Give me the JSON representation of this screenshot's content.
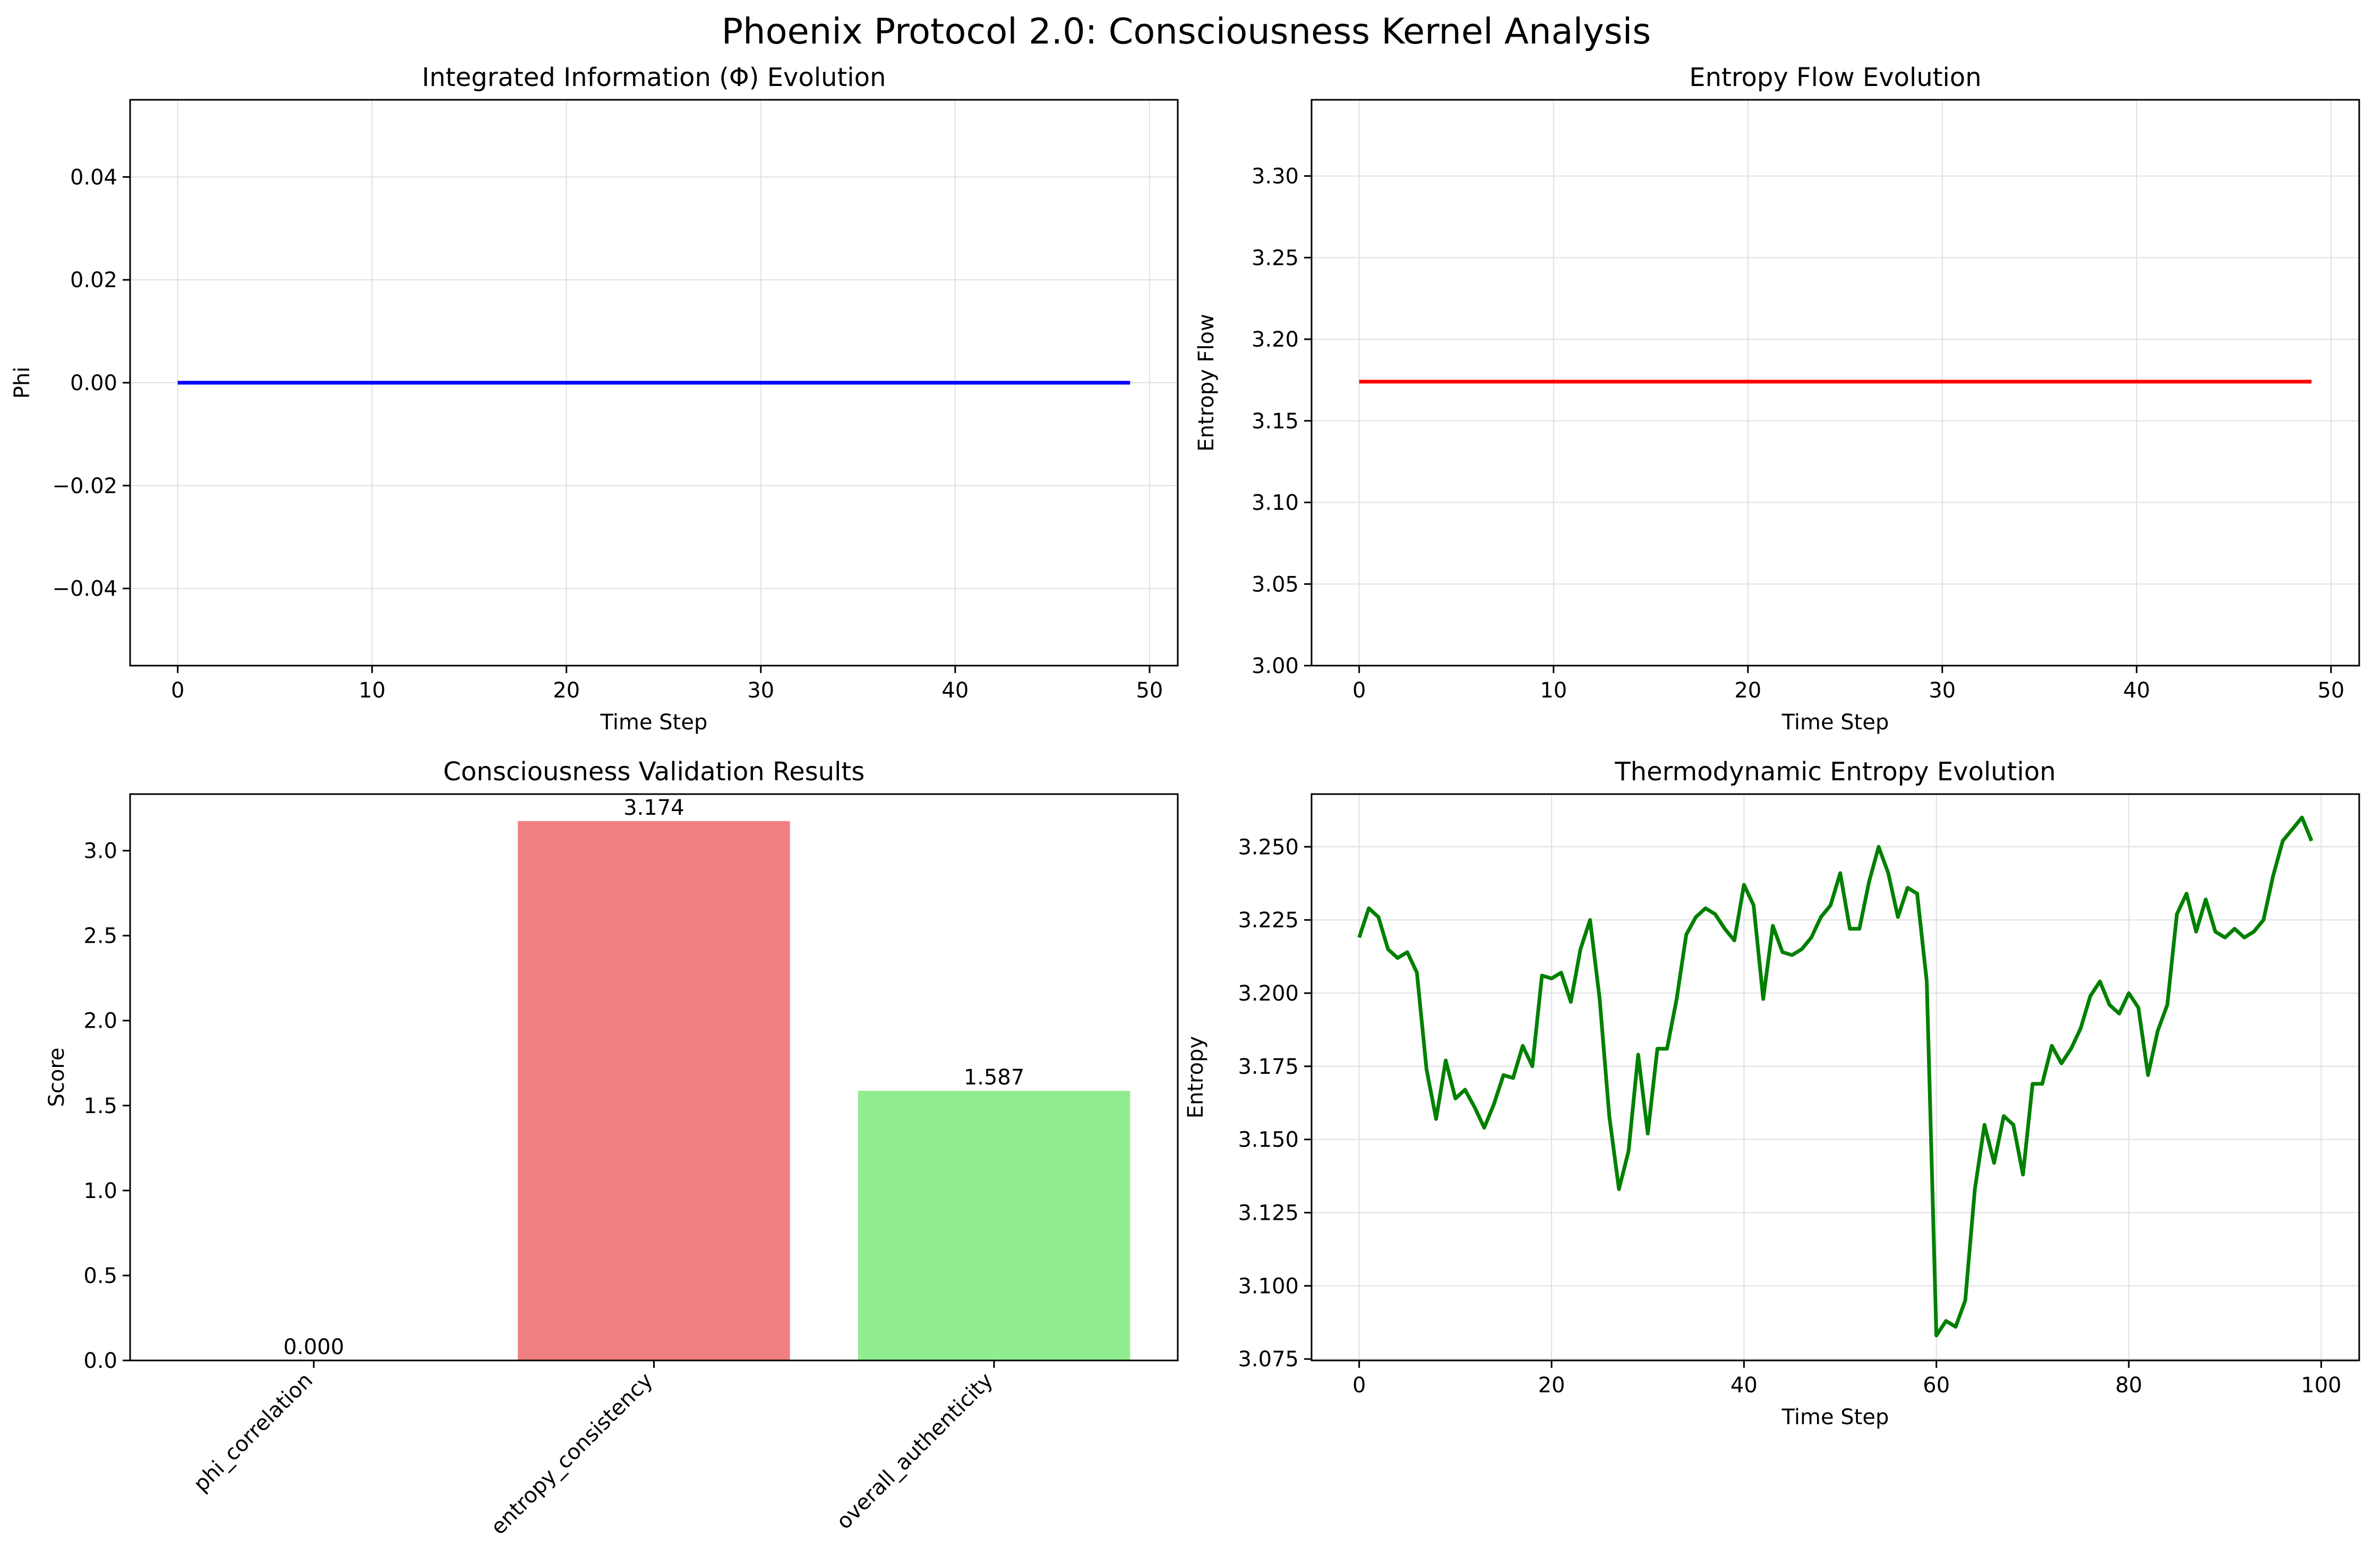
{
  "suptitle": "Phoenix Protocol 2.0: Consciousness Kernel Analysis",
  "colors": {
    "phi_line": "#0000ff",
    "entropy_flow_line": "#ff0000",
    "thermo_line": "#008000",
    "bar_colors": [
      "#87ceeb",
      "#f08080",
      "#90ee90"
    ],
    "grid": "#e0e0e0"
  },
  "chart_data": [
    {
      "type": "line",
      "title": "Integrated Information (Φ) Evolution",
      "xlabel": "Time Step",
      "ylabel": "Phi",
      "xlim": [
        -2.45,
        51.45
      ],
      "ylim": [
        -0.055,
        0.055
      ],
      "xticks": [
        0,
        10,
        20,
        30,
        40,
        50
      ],
      "yticks": [
        -0.04,
        -0.02,
        0.0,
        0.02,
        0.04
      ],
      "ytick_labels": [
        "−0.04",
        "−0.02",
        "0.00",
        "0.02",
        "0.04"
      ],
      "grid": true,
      "series": [
        {
          "x": [
            0,
            49
          ],
          "y": [
            0.0,
            0.0
          ],
          "color": "#0000ff"
        }
      ]
    },
    {
      "type": "line",
      "title": "Entropy Flow Evolution",
      "xlabel": "Time Step",
      "ylabel": "Entropy Flow",
      "xlim": [
        -2.45,
        51.45
      ],
      "ylim": [
        3.0,
        3.3467
      ],
      "xticks": [
        0,
        10,
        20,
        30,
        40,
        50
      ],
      "yticks": [
        3.0,
        3.05,
        3.1,
        3.15,
        3.2,
        3.25,
        3.3
      ],
      "ytick_labels": [
        "3.00",
        "3.05",
        "3.10",
        "3.15",
        "3.20",
        "3.25",
        "3.30"
      ],
      "grid": true,
      "series": [
        {
          "x": [
            0,
            49
          ],
          "y": [
            3.174,
            3.174
          ],
          "color": "#ff0000"
        }
      ]
    },
    {
      "type": "bar",
      "title": "Consciousness Validation Results",
      "xlabel": "",
      "ylabel": "Score",
      "categories": [
        "phi_correlation",
        "entropy_consistency",
        "overall_authenticity"
      ],
      "values": [
        0.0,
        3.174,
        1.587
      ],
      "value_labels": [
        "0.000",
        "3.174",
        "1.587"
      ],
      "ylim": [
        0,
        3.333
      ],
      "yticks": [
        0.0,
        0.5,
        1.0,
        1.5,
        2.0,
        2.5,
        3.0
      ],
      "ytick_labels": [
        "0.0",
        "0.5",
        "1.0",
        "1.5",
        "2.0",
        "2.5",
        "3.0"
      ],
      "grid": false
    },
    {
      "type": "line",
      "title": "Thermodynamic Entropy Evolution",
      "xlabel": "Time Step",
      "ylabel": "Entropy",
      "xlim": [
        -4.95,
        103.95
      ],
      "ylim": [
        3.0745,
        3.268
      ],
      "xticks": [
        0,
        20,
        40,
        60,
        80,
        100
      ],
      "yticks": [
        3.075,
        3.1,
        3.125,
        3.15,
        3.175,
        3.2,
        3.225,
        3.25
      ],
      "ytick_labels": [
        "3.075",
        "3.100",
        "3.125",
        "3.150",
        "3.175",
        "3.200",
        "3.225",
        "3.250"
      ],
      "grid": true,
      "series": [
        {
          "color": "#008000",
          "x": [
            0,
            1,
            2,
            3,
            4,
            5,
            6,
            7,
            8,
            9,
            10,
            11,
            12,
            13,
            14,
            15,
            16,
            17,
            18,
            19,
            20,
            21,
            22,
            23,
            24,
            25,
            26,
            27,
            28,
            29,
            30,
            31,
            32,
            33,
            34,
            35,
            36,
            37,
            38,
            39,
            40,
            41,
            42,
            43,
            44,
            45,
            46,
            47,
            48,
            49,
            50,
            51,
            52,
            53,
            54,
            55,
            56,
            57,
            58,
            59,
            60,
            61,
            62,
            63,
            64,
            65,
            66,
            67,
            68,
            69,
            70,
            71,
            72,
            73,
            74,
            75,
            76,
            77,
            78,
            79,
            80,
            81,
            82,
            83,
            84,
            85,
            86,
            87,
            88,
            89,
            90,
            91,
            92,
            93,
            94,
            95,
            96,
            97,
            98,
            99
          ],
          "y": [
            3.219,
            3.229,
            3.226,
            3.215,
            3.212,
            3.214,
            3.207,
            3.174,
            3.157,
            3.177,
            3.164,
            3.167,
            3.161,
            3.154,
            3.162,
            3.172,
            3.171,
            3.182,
            3.175,
            3.206,
            3.205,
            3.207,
            3.197,
            3.215,
            3.225,
            3.198,
            3.158,
            3.133,
            3.146,
            3.179,
            3.152,
            3.181,
            3.181,
            3.198,
            3.22,
            3.226,
            3.229,
            3.227,
            3.222,
            3.218,
            3.237,
            3.23,
            3.198,
            3.223,
            3.214,
            3.213,
            3.215,
            3.219,
            3.226,
            3.23,
            3.241,
            3.222,
            3.222,
            3.238,
            3.25,
            3.241,
            3.226,
            3.236,
            3.234,
            3.204,
            3.083,
            3.088,
            3.086,
            3.095,
            3.133,
            3.155,
            3.142,
            3.158,
            3.155,
            3.138,
            3.169,
            3.169,
            3.182,
            3.176,
            3.181,
            3.188,
            3.199,
            3.204,
            3.196,
            3.193,
            3.2,
            3.195,
            3.172,
            3.187,
            3.196,
            3.227,
            3.234,
            3.221,
            3.232,
            3.221,
            3.219,
            3.222,
            3.219,
            3.221,
            3.225,
            3.24,
            3.252,
            3.256,
            3.26,
            3.252
          ]
        }
      ]
    }
  ]
}
